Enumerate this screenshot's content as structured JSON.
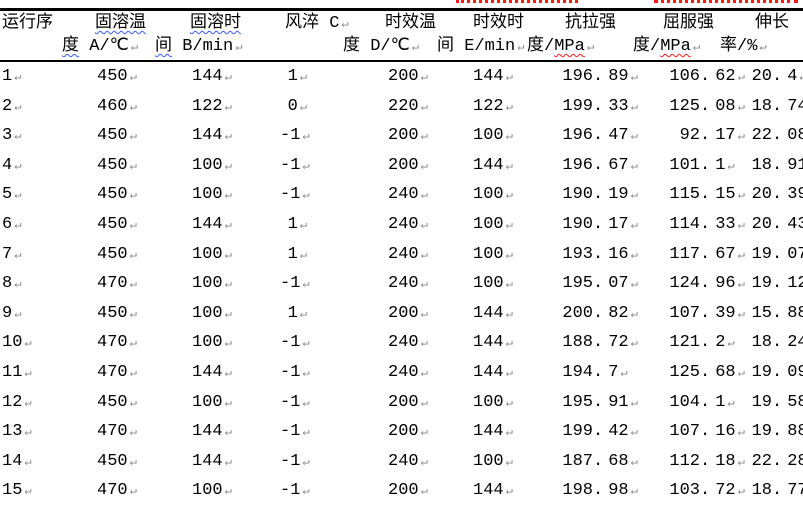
{
  "document": {
    "language": "zh-CN",
    "colors": {
      "text": "#000000",
      "border": "#000000",
      "background": "#ffffff",
      "spell_check_underline": "#3b5bff",
      "grammar_check_underline": "#ff1a1a",
      "paragraph_mark_color": "#8a8a8a"
    },
    "table": {
      "paragraph_mark": "↵",
      "header_row1": [
        {
          "segments": [
            {
              "text": "运行序",
              "wavy": ""
            }
          ],
          "mark": false
        },
        {
          "segments": [
            {
              "text": "固溶温",
              "wavy": "blue"
            }
          ],
          "mark": false
        },
        {
          "segments": [
            {
              "text": "固溶时",
              "wavy": "blue"
            }
          ],
          "mark": false
        },
        {
          "segments": [
            {
              "text": "风淬 C",
              "wavy": ""
            }
          ],
          "mark": true
        },
        {
          "segments": [
            {
              "text": "时效温",
              "wavy": ""
            }
          ],
          "mark": false
        },
        {
          "segments": [
            {
              "text": "时效时",
              "wavy": ""
            }
          ],
          "mark": false
        },
        {
          "segments": [
            {
              "text": "抗拉强",
              "wavy": ""
            }
          ],
          "mark": false
        },
        {
          "segments": [
            {
              "text": "屈服强",
              "wavy": ""
            }
          ],
          "mark": false
        },
        {
          "segments": [
            {
              "text": "伸长",
              "wavy": ""
            }
          ],
          "mark": false
        }
      ],
      "header_row2": [
        {
          "segments": [],
          "mark": false
        },
        {
          "segments": [
            {
              "text": "度",
              "wavy": "blue"
            },
            {
              "text": " A/℃",
              "wavy": ""
            }
          ],
          "mark": true
        },
        {
          "segments": [
            {
              "text": "间",
              "wavy": "blue"
            },
            {
              "text": " B/min",
              "wavy": ""
            }
          ],
          "mark": true
        },
        {
          "segments": [],
          "mark": false
        },
        {
          "segments": [
            {
              "text": "度 D/℃",
              "wavy": ""
            }
          ],
          "mark": true
        },
        {
          "segments": [
            {
              "text": "间 E/min",
              "wavy": ""
            }
          ],
          "mark": true
        },
        {
          "segments": [
            {
              "text": "度/",
              "wavy": ""
            },
            {
              "text": "MPa",
              "wavy": "red"
            }
          ],
          "mark": true
        },
        {
          "segments": [
            {
              "text": "度/",
              "wavy": ""
            },
            {
              "text": "MPa",
              "wavy": "red"
            }
          ],
          "mark": true
        },
        {
          "segments": [
            {
              "text": "率/%",
              "wavy": ""
            }
          ],
          "mark": true
        }
      ],
      "column_names": [
        "运行序",
        "固溶温度 A/℃",
        "固溶时间 B/min",
        "风淬 C",
        "时效温度 D/℃",
        "时效时间 E/min",
        "抗拉强度/MPa",
        "屈服强度/MPa",
        "伸长率/%"
      ],
      "rows": [
        [
          "1",
          "450",
          "144",
          "1",
          "200",
          "144",
          "196.89",
          "106.62",
          "20.4"
        ],
        [
          "2",
          "460",
          "122",
          "0",
          "220",
          "122",
          "199.33",
          "125.08",
          "18.74"
        ],
        [
          "3",
          "450",
          "144",
          "-1",
          "200",
          "100",
          "196.47",
          "92.17",
          "22.08"
        ],
        [
          "4",
          "450",
          "100",
          "-1",
          "200",
          "144",
          "196.67",
          "101.1",
          "18.91"
        ],
        [
          "5",
          "450",
          "100",
          "-1",
          "240",
          "100",
          "190.19",
          "115.15",
          "20.39"
        ],
        [
          "6",
          "450",
          "144",
          "1",
          "240",
          "100",
          "190.17",
          "114.33",
          "20.43"
        ],
        [
          "7",
          "450",
          "100",
          "1",
          "240",
          "100",
          "193.16",
          "117.67",
          "19.07"
        ],
        [
          "8",
          "470",
          "100",
          "-1",
          "240",
          "100",
          "195.07",
          "124.96",
          "19.12"
        ],
        [
          "9",
          "450",
          "100",
          "1",
          "200",
          "144",
          "200.82",
          "107.39",
          "15.88"
        ],
        [
          "10",
          "470",
          "100",
          "-1",
          "240",
          "144",
          "188.72",
          "121.2",
          "18.24"
        ],
        [
          "11",
          "470",
          "144",
          "-1",
          "240",
          "144",
          "194.7",
          "125.68",
          "19.09"
        ],
        [
          "12",
          "450",
          "100",
          "-1",
          "200",
          "100",
          "195.91",
          "104.1",
          "19.58"
        ],
        [
          "13",
          "470",
          "144",
          "-1",
          "200",
          "144",
          "199.42",
          "107.16",
          "19.88"
        ],
        [
          "14",
          "450",
          "144",
          "-1",
          "240",
          "100",
          "187.68",
          "112.18",
          "22.28"
        ],
        [
          "15",
          "470",
          "100",
          "-1",
          "200",
          "144",
          "198.98",
          "103.72",
          "18.77"
        ]
      ]
    }
  }
}
